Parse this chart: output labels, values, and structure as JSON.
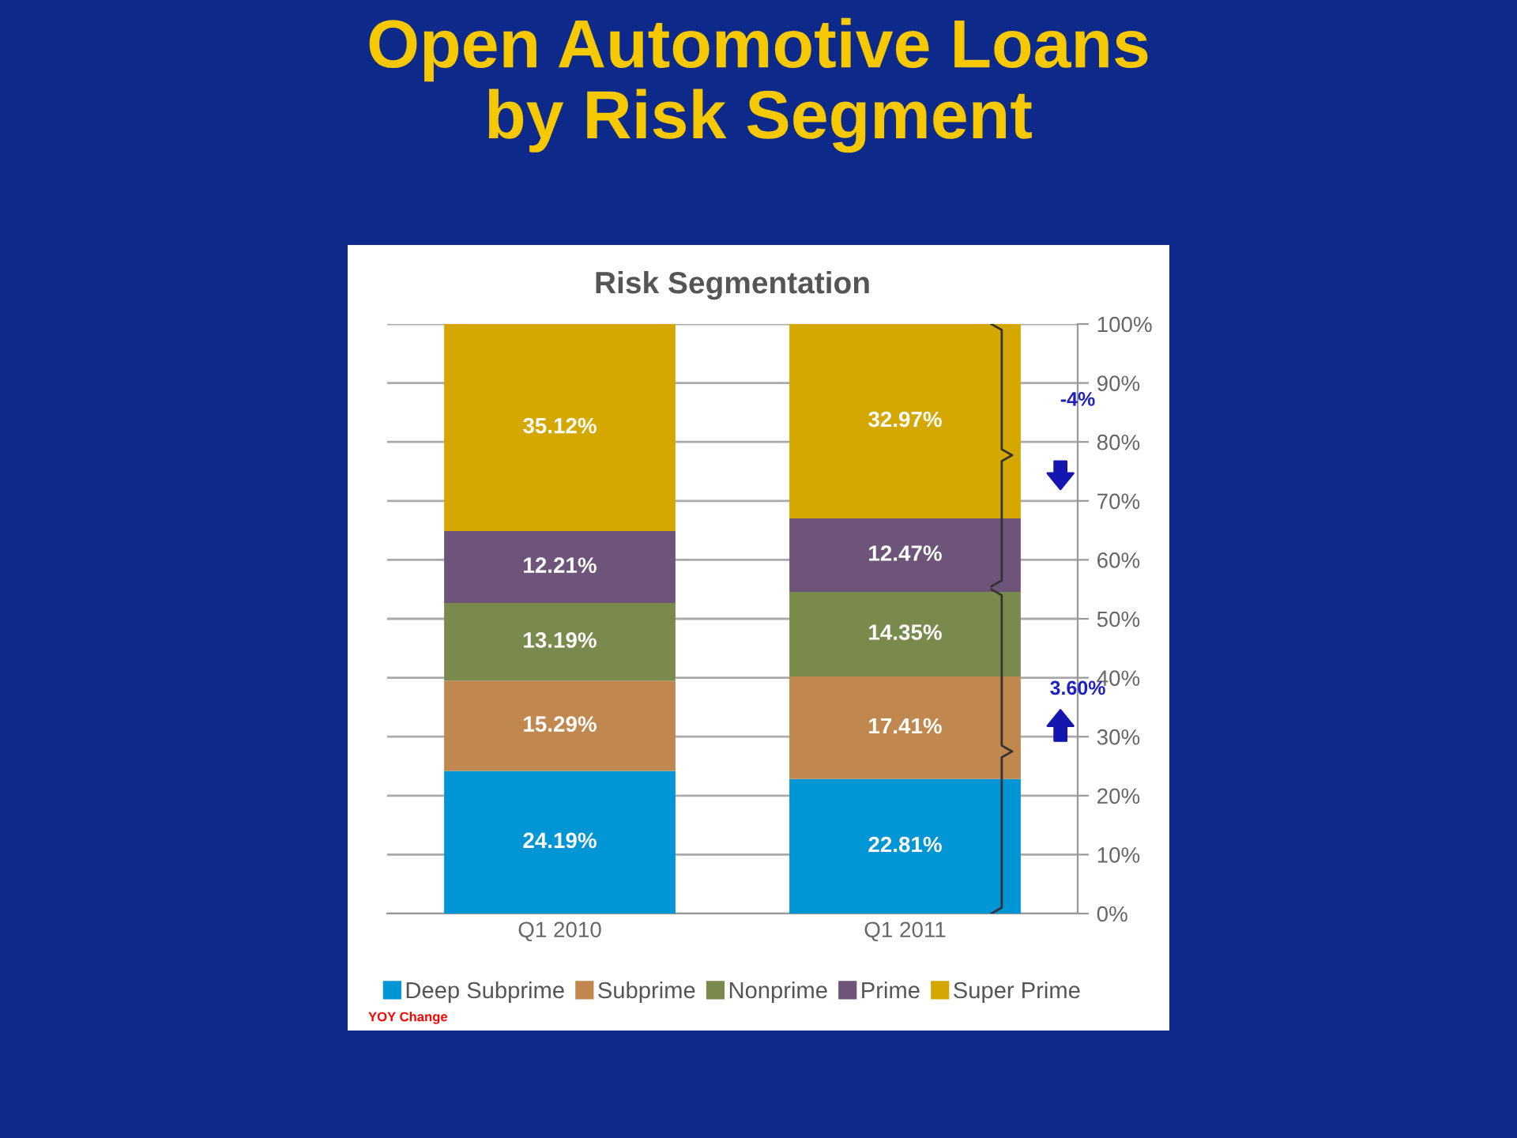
{
  "chart_data": {
    "type": "bar",
    "stacked": true,
    "title": "Open Automotive Loans\nby Risk Segment",
    "subtitle": "Risk Segmentation",
    "categories": [
      "Q1 2010",
      "Q1 2011"
    ],
    "series": [
      {
        "name": "Deep Subprime",
        "color": "#0096d6",
        "values": [
          24.19,
          22.81
        ],
        "value_labels": [
          "24.19%",
          "22.81%"
        ]
      },
      {
        "name": "Subprime",
        "color": "#c0874e",
        "values": [
          15.29,
          17.41
        ],
        "value_labels": [
          "15.29%",
          "17.41%"
        ]
      },
      {
        "name": "Nonprime",
        "color": "#7a8a4c",
        "values": [
          13.19,
          14.35
        ],
        "value_labels": [
          "13.19%",
          "14.35%"
        ]
      },
      {
        "name": "Prime",
        "color": "#6e5478",
        "values": [
          12.21,
          12.47
        ],
        "value_labels": [
          "12.21%",
          "12.47%"
        ]
      },
      {
        "name": "Super Prime",
        "color": "#d4a800",
        "values": [
          35.12,
          32.97
        ],
        "value_labels": [
          "35.12%",
          "32.97%"
        ]
      }
    ],
    "ylim": [
      0,
      100
    ],
    "yticks": [
      {
        "value": 0,
        "label": "0%"
      },
      {
        "value": 10,
        "label": "10%"
      },
      {
        "value": 20,
        "label": "20%"
      },
      {
        "value": 30,
        "label": "30%"
      },
      {
        "value": 40,
        "label": "40%"
      },
      {
        "value": 50,
        "label": "50%"
      },
      {
        "value": 60,
        "label": "60%"
      },
      {
        "value": 70,
        "label": "70%"
      },
      {
        "value": 80,
        "label": "80%"
      },
      {
        "value": 90,
        "label": "90%"
      },
      {
        "value": 100,
        "label": "100%"
      }
    ],
    "grid": "y",
    "legend": "bottom",
    "annotations": [
      "-4%",
      "3.60%",
      "YOY Change"
    ]
  }
}
